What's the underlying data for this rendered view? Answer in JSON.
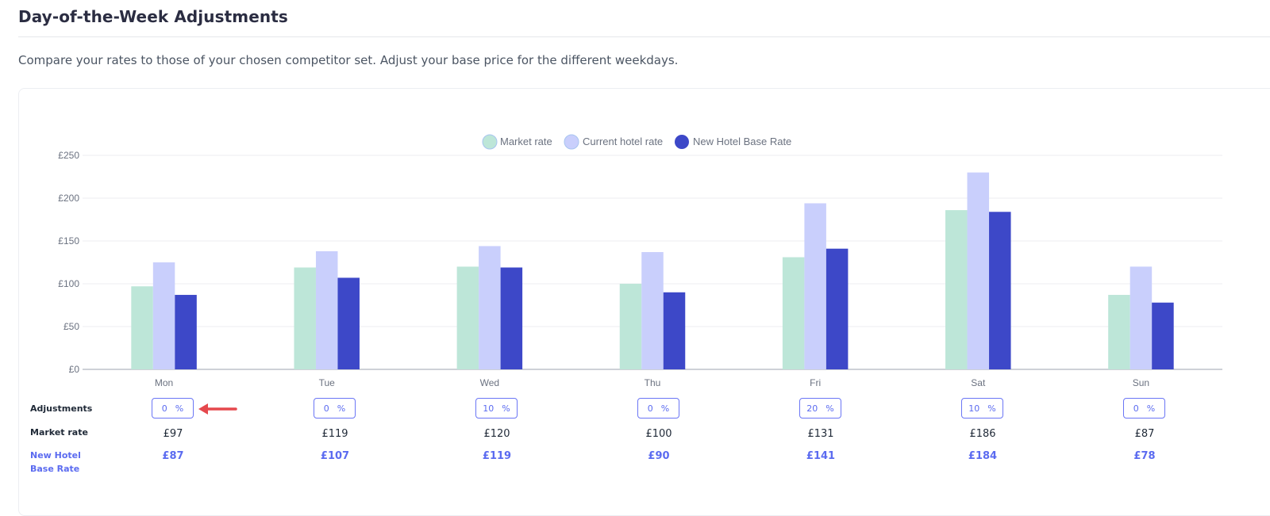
{
  "page": {
    "title": "Day-of-the-Week Adjustments",
    "subtitle": "Compare your rates to those of your chosen competitor set. Adjust your base price for the different weekdays."
  },
  "table": {
    "adjustments_label": "Adjustments",
    "market_rate_label": "Market rate",
    "new_hotel_base_rate_label": "New Hotel Base Rate",
    "percent_sign": "%",
    "adjustments": [
      "0",
      "0",
      "10",
      "0",
      "20",
      "10",
      "0"
    ],
    "market_rates": [
      "£97",
      "£119",
      "£120",
      "£100",
      "£131",
      "£186",
      "£87"
    ],
    "new_hotel_base_rates": [
      "£87",
      "£107",
      "£119",
      "£90",
      "£141",
      "£184",
      "£78"
    ]
  },
  "chart_data": {
    "type": "bar",
    "categories": [
      "Mon",
      "Tue",
      "Wed",
      "Thu",
      "Fri",
      "Sat",
      "Sun"
    ],
    "series": [
      {
        "name": "Market rate",
        "color": "#bde6d8",
        "values": [
          97,
          119,
          120,
          100,
          131,
          186,
          87
        ]
      },
      {
        "name": "Current hotel rate",
        "color": "#c9cffc",
        "values": [
          125,
          138,
          144,
          137,
          194,
          230,
          120
        ]
      },
      {
        "name": "New Hotel Base Rate",
        "color": "#3d48c8",
        "values": [
          87,
          107,
          119,
          90,
          141,
          184,
          78
        ]
      }
    ],
    "ylim": [
      0,
      250
    ],
    "y_ticks": [
      0,
      50,
      100,
      150,
      200,
      250
    ],
    "y_tick_labels": [
      "£0",
      "£50",
      "£100",
      "£150",
      "£200",
      "£250"
    ],
    "grid": true,
    "legend": "top-center"
  },
  "colors": {
    "accent": "#5b6bf0",
    "adjustment_arrow": "#e5484d"
  }
}
